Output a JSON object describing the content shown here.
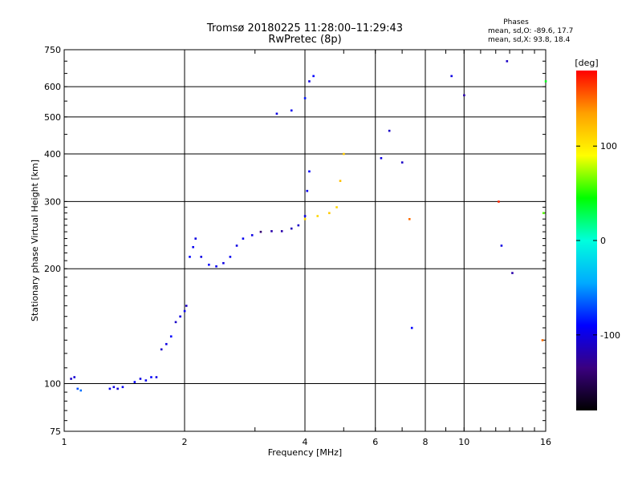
{
  "title": "Tromsø 20180225 11:28:00–11:29:43",
  "subtitle": "RwPretec (8p)",
  "phase_notes": {
    "heading": "Phases",
    "line_o": "mean, sd,O: -89.6, 17.7",
    "line_x": "mean, sd,X:  93.8, 18.4"
  },
  "chart_data": {
    "type": "scatter",
    "title": "Tromsø 20180225 11:28:00–11:29:43",
    "subtitle": "RwPretec (8p)",
    "xlabel": "Frequency [MHz]",
    "ylabel": "Stationary phase Virtual Height [km]",
    "x_scale": "log",
    "y_scale": "log",
    "xlim": [
      1,
      16
    ],
    "ylim": [
      75,
      750
    ],
    "x_ticks": [
      1,
      2,
      4,
      6,
      8,
      10,
      16
    ],
    "x_tick_labels": [
      "1",
      "2",
      "4",
      "6",
      "8",
      "10",
      "16"
    ],
    "y_ticks": [
      75,
      100,
      200,
      300,
      400,
      500,
      600,
      750
    ],
    "y_tick_labels": [
      "75",
      "100",
      "200",
      "300",
      "400",
      "500",
      "600",
      "750"
    ],
    "grid": true,
    "colorbar": {
      "label": "[deg]",
      "range": [
        -180,
        180
      ],
      "ticks": [
        100,
        0,
        -100
      ],
      "tick_labels": [
        "100",
        "0",
        "-100"
      ],
      "colors": [
        "#000000",
        "#3a0080",
        "#0000ff",
        "#00aaff",
        "#00ffdd",
        "#00ff00",
        "#ffff00",
        "#ffa000",
        "#ff0000"
      ]
    },
    "points": [
      {
        "x": 1.04,
        "y": 103,
        "p": -110
      },
      {
        "x": 1.06,
        "y": 104,
        "p": -105
      },
      {
        "x": 1.08,
        "y": 97,
        "p": -70
      },
      {
        "x": 1.1,
        "y": 96,
        "p": -60
      },
      {
        "x": 1.3,
        "y": 97,
        "p": -95
      },
      {
        "x": 1.33,
        "y": 98,
        "p": -100
      },
      {
        "x": 1.36,
        "y": 97,
        "p": -105
      },
      {
        "x": 1.4,
        "y": 98,
        "p": -95
      },
      {
        "x": 1.5,
        "y": 101,
        "p": -90
      },
      {
        "x": 1.55,
        "y": 103,
        "p": -100
      },
      {
        "x": 1.6,
        "y": 102,
        "p": -95
      },
      {
        "x": 1.65,
        "y": 104,
        "p": -90
      },
      {
        "x": 1.7,
        "y": 104,
        "p": -100
      },
      {
        "x": 1.75,
        "y": 123,
        "p": -110
      },
      {
        "x": 1.8,
        "y": 127,
        "p": -100
      },
      {
        "x": 1.85,
        "y": 133,
        "p": -90
      },
      {
        "x": 1.9,
        "y": 145,
        "p": -110
      },
      {
        "x": 1.95,
        "y": 150,
        "p": -100
      },
      {
        "x": 2.0,
        "y": 155,
        "p": -95
      },
      {
        "x": 2.02,
        "y": 160,
        "p": -110
      },
      {
        "x": 2.06,
        "y": 215,
        "p": -90
      },
      {
        "x": 2.1,
        "y": 228,
        "p": -95
      },
      {
        "x": 2.13,
        "y": 240,
        "p": -100
      },
      {
        "x": 2.2,
        "y": 215,
        "p": -100
      },
      {
        "x": 2.3,
        "y": 205,
        "p": -90
      },
      {
        "x": 2.4,
        "y": 203,
        "p": -95
      },
      {
        "x": 2.5,
        "y": 207,
        "p": -100
      },
      {
        "x": 2.6,
        "y": 215,
        "p": -95
      },
      {
        "x": 2.7,
        "y": 230,
        "p": -100
      },
      {
        "x": 2.8,
        "y": 240,
        "p": -95
      },
      {
        "x": 2.95,
        "y": 245,
        "p": -100
      },
      {
        "x": 3.1,
        "y": 250,
        "p": -140
      },
      {
        "x": 3.3,
        "y": 251,
        "p": -120
      },
      {
        "x": 3.5,
        "y": 251,
        "p": -120
      },
      {
        "x": 3.7,
        "y": 255,
        "p": -115
      },
      {
        "x": 3.85,
        "y": 260,
        "p": -110
      },
      {
        "x": 4.0,
        "y": 275,
        "p": -100
      },
      {
        "x": 4.05,
        "y": 320,
        "p": -95
      },
      {
        "x": 4.1,
        "y": 360,
        "p": -90
      },
      {
        "x": 4.0,
        "y": 270,
        "p": 110
      },
      {
        "x": 4.3,
        "y": 275,
        "p": 110
      },
      {
        "x": 4.6,
        "y": 280,
        "p": 115
      },
      {
        "x": 4.8,
        "y": 290,
        "p": 110
      },
      {
        "x": 4.9,
        "y": 340,
        "p": 120
      },
      {
        "x": 5.0,
        "y": 400,
        "p": 115
      },
      {
        "x": 3.4,
        "y": 510,
        "p": -100
      },
      {
        "x": 3.7,
        "y": 520,
        "p": -95
      },
      {
        "x": 4.0,
        "y": 560,
        "p": -85
      },
      {
        "x": 4.1,
        "y": 620,
        "p": -100
      },
      {
        "x": 4.2,
        "y": 640,
        "p": -90
      },
      {
        "x": 6.2,
        "y": 390,
        "p": -100
      },
      {
        "x": 6.5,
        "y": 460,
        "p": -110
      },
      {
        "x": 7.0,
        "y": 380,
        "p": -110
      },
      {
        "x": 7.3,
        "y": 270,
        "p": 150
      },
      {
        "x": 7.4,
        "y": 140,
        "p": -90
      },
      {
        "x": 9.3,
        "y": 640,
        "p": -100
      },
      {
        "x": 10.0,
        "y": 570,
        "p": -120
      },
      {
        "x": 12.2,
        "y": 300,
        "p": 170
      },
      {
        "x": 12.4,
        "y": 230,
        "p": -100
      },
      {
        "x": 12.8,
        "y": 700,
        "p": -110
      },
      {
        "x": 13.2,
        "y": 195,
        "p": -120
      },
      {
        "x": 15.8,
        "y": 280,
        "p": 60
      },
      {
        "x": 15.7,
        "y": 130,
        "p": 150
      },
      {
        "x": 16.0,
        "y": 620,
        "p": 40
      }
    ]
  }
}
